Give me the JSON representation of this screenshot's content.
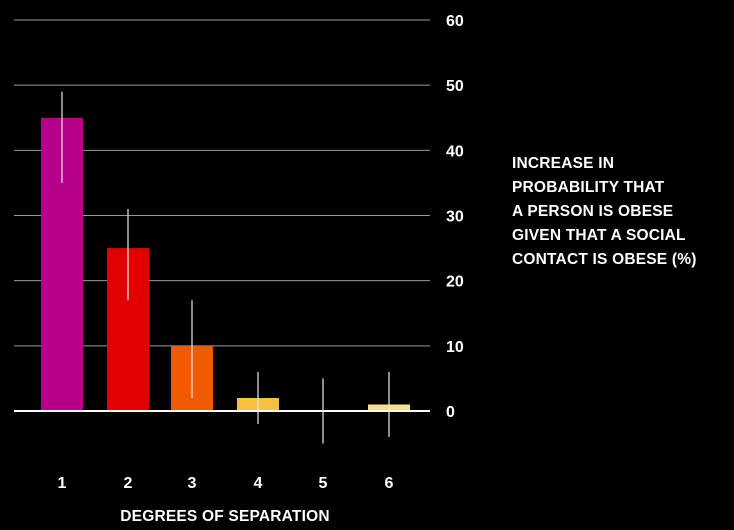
{
  "chart_data": {
    "type": "bar",
    "categories": [
      "1",
      "2",
      "3",
      "4",
      "5",
      "6"
    ],
    "values": [
      45,
      25,
      10,
      2,
      0,
      1
    ],
    "error_bars": [
      {
        "low": 35,
        "high": 49
      },
      {
        "low": 17,
        "high": 31
      },
      {
        "low": 2,
        "high": 17
      },
      {
        "low": -2,
        "high": 6
      },
      {
        "low": -5,
        "high": 5
      },
      {
        "low": -4,
        "high": 6
      }
    ],
    "bar_colors": [
      "#b5008a",
      "#e00000",
      "#f05a00",
      "#f8c040",
      "#f8e08a",
      "#f8e08a"
    ],
    "title": "",
    "xlabel": "DEGREES OF SEPARATION",
    "ylabel_lines": [
      "INCREASE IN",
      "PROBABILITY THAT",
      "A PERSON IS OBESE",
      "GIVEN THAT A SOCIAL",
      "CONTACT IS OBESE (%)"
    ],
    "ylim": [
      0,
      60
    ],
    "yticks": [
      0,
      10,
      20,
      30,
      40,
      50,
      60
    ],
    "y_tick_labels": [
      "0",
      "10",
      "20",
      "30",
      "40",
      "50",
      "60"
    ],
    "grid": true,
    "y_axis_side": "right",
    "colors": {
      "background": "#000000",
      "text": "#ffffff",
      "grid": "#9a9a9a",
      "baseline": "#ffffff",
      "error_bar": "#e8e8e8"
    }
  }
}
